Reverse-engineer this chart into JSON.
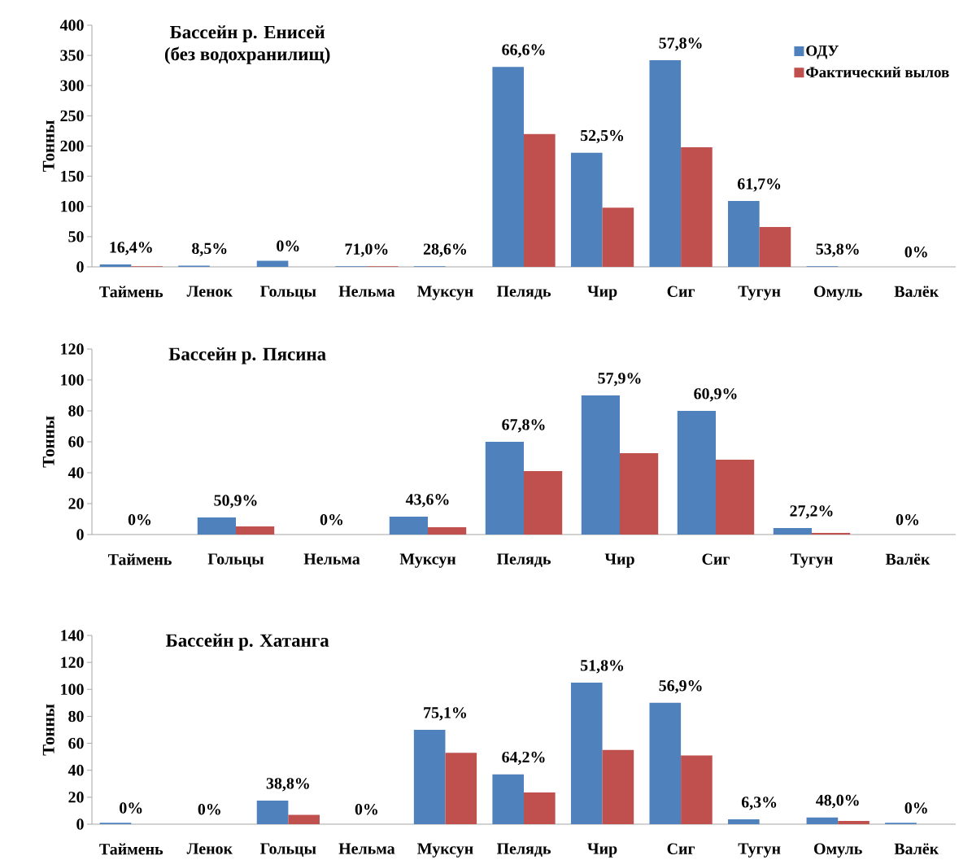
{
  "chart_data": [
    {
      "type": "bar",
      "title": "Бассейн р. Енисей",
      "subtitle": "(без водохранилищ)",
      "ylabel": "Тонны",
      "categories": [
        "Таймень",
        "Ленок",
        "Гольцы",
        "Нельма",
        "Муксун",
        "Пелядь",
        "Чир",
        "Сиг",
        "Тугун",
        "Омуль",
        "Валёк"
      ],
      "series": [
        {
          "name": "ОДУ",
          "color": "#4f81bd",
          "values": [
            4,
            2,
            10,
            1,
            1,
            331,
            189,
            342,
            109,
            1,
            0
          ]
        },
        {
          "name": "Фактический вылов",
          "color": "#c0504d",
          "values": [
            1,
            0,
            0,
            1,
            0,
            220,
            98,
            198,
            66,
            0,
            0
          ]
        }
      ],
      "ylim": [
        0,
        400
      ],
      "yticks": [
        0,
        50,
        100,
        150,
        200,
        250,
        300,
        350,
        400
      ],
      "legend": "top right",
      "grid": false,
      "annotations": [
        {
          "text": "16,4%",
          "x": "Таймень",
          "y": 4
        },
        {
          "text": "8,5%",
          "x": "Ленок",
          "y": 2
        },
        {
          "text": "0%",
          "x": "Гольцы",
          "y": 10
        },
        {
          "text": "71,0%",
          "x": "Нельма",
          "y": 1
        },
        {
          "text": "28,6%",
          "x": "Муксун",
          "y": 1
        },
        {
          "text": "66,6%",
          "x": "Пелядь",
          "y": 331
        },
        {
          "text": "52,5%",
          "x": "Чир",
          "y": 189
        },
        {
          "text": "57,8%",
          "x": "Сиг",
          "y": 342
        },
        {
          "text": "61,7%",
          "x": "Тугун",
          "y": 109
        },
        {
          "text": "53,8%",
          "x": "Омуль",
          "y": 1
        },
        {
          "text": "0%",
          "x": "Валёк",
          "y": 0
        }
      ]
    },
    {
      "type": "bar",
      "title": "Бассейн р. Пясина",
      "ylabel": "Тонны",
      "categories": [
        "Таймень",
        "Гольцы",
        "Нельма",
        "Муксун",
        "Пелядь",
        "Чир",
        "Сиг",
        "Тугун",
        "Валёк"
      ],
      "series": [
        {
          "color": "#4f81bd",
          "values": [
            0,
            11,
            0,
            11.6,
            60,
            90,
            80,
            4.2,
            0
          ]
        },
        {
          "color": "#c0504d",
          "values": [
            0,
            5.3,
            0,
            4.7,
            41,
            52.6,
            48.4,
            1.1,
            0
          ]
        }
      ],
      "ylim": [
        0,
        120
      ],
      "yticks": [
        0,
        20,
        40,
        60,
        80,
        100,
        120
      ],
      "legend": false,
      "grid": false,
      "annotations": [
        {
          "text": "0%",
          "x": "Таймень",
          "y": 0
        },
        {
          "text": "50,9%",
          "x": "Гольцы",
          "y": 11
        },
        {
          "text": "0%",
          "x": "Нельма",
          "y": 0
        },
        {
          "text": "43,6%",
          "x": "Муксун",
          "y": 11.6
        },
        {
          "text": "67,8%",
          "x": "Пелядь",
          "y": 60
        },
        {
          "text": "57,9%",
          "x": "Чир",
          "y": 90
        },
        {
          "text": "60,9%",
          "x": "Сиг",
          "y": 80
        },
        {
          "text": "27,2%",
          "x": "Тугун",
          "y": 4.2
        },
        {
          "text": "0%",
          "x": "Валёк",
          "y": 0
        }
      ]
    },
    {
      "type": "bar",
      "title": "Бассейн р. Хатанга",
      "ylabel": "Тонны",
      "categories": [
        "Таймень",
        "Ленок",
        "Гольцы",
        "Нельма",
        "Муксун",
        "Пелядь",
        "Чир",
        "Сиг",
        "Тугун",
        "Омуль",
        "Валёк"
      ],
      "series": [
        {
          "color": "#4f81bd",
          "values": [
            1,
            0,
            17.5,
            0,
            70,
            37,
            105,
            90,
            3.6,
            5,
            1
          ]
        },
        {
          "color": "#c0504d",
          "values": [
            0,
            0,
            7,
            0,
            53,
            23.5,
            55,
            51,
            0,
            2.4,
            0
          ]
        }
      ],
      "ylim": [
        0,
        140
      ],
      "yticks": [
        0,
        20,
        40,
        60,
        80,
        100,
        120,
        140
      ],
      "legend": false,
      "grid": false,
      "annotations": [
        {
          "text": "0%",
          "x": "Таймень",
          "y": 1
        },
        {
          "text": "0%",
          "x": "Ленок",
          "y": 0
        },
        {
          "text": "38,8%",
          "x": "Гольцы",
          "y": 17.5
        },
        {
          "text": "0%",
          "x": "Нельма",
          "y": 0
        },
        {
          "text": "75,1%",
          "x": "Муксун",
          "y": 70
        },
        {
          "text": "64,2%",
          "x": "Пелядь",
          "y": 37
        },
        {
          "text": "51,8%",
          "x": "Чир",
          "y": 105
        },
        {
          "text": "56,9%",
          "x": "Сиг",
          "y": 90
        },
        {
          "text": "6,3%",
          "x": "Тугун",
          "y": 3.6
        },
        {
          "text": "48,0%",
          "x": "Омуль",
          "y": 5
        },
        {
          "text": "0%",
          "x": "Валёк",
          "y": 1
        }
      ]
    }
  ]
}
